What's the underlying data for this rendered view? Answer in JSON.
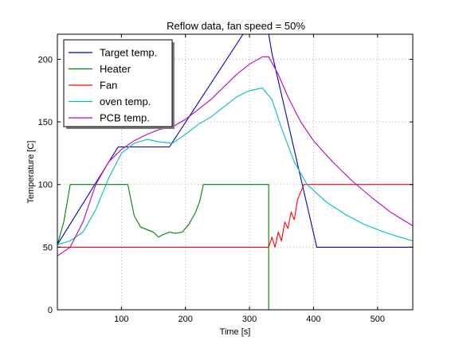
{
  "chart_data": {
    "type": "line",
    "title": "Reflow data, fan speed = 50%",
    "xlabel": "Time [s]",
    "ylabel": "Temperature [C]",
    "xlim": [
      0,
      555
    ],
    "ylim": [
      0,
      220
    ],
    "xticks": [
      100,
      200,
      300,
      400,
      500
    ],
    "yticks": [
      0,
      50,
      100,
      150,
      200
    ],
    "grid": true,
    "legend_position": "top-left",
    "series": [
      {
        "name": "Target temp.",
        "color": "#0000bf",
        "points": [
          [
            0,
            52
          ],
          [
            95,
            130
          ],
          [
            175,
            130
          ],
          [
            290,
            220
          ],
          [
            330,
            220
          ],
          [
            335,
            205
          ],
          [
            405,
            50
          ],
          [
            555,
            50
          ]
        ]
      },
      {
        "name": "Heater",
        "color": "#008000",
        "points": [
          [
            0,
            52
          ],
          [
            10,
            70
          ],
          [
            20,
            100
          ],
          [
            110,
            100
          ],
          [
            120,
            75
          ],
          [
            130,
            66
          ],
          [
            140,
            64
          ],
          [
            150,
            62
          ],
          [
            158,
            58
          ],
          [
            165,
            60
          ],
          [
            175,
            62
          ],
          [
            185,
            61
          ],
          [
            195,
            62
          ],
          [
            205,
            68
          ],
          [
            215,
            77
          ],
          [
            222,
            86
          ],
          [
            228,
            100
          ],
          [
            330,
            100
          ],
          [
            330,
            0
          ]
        ]
      },
      {
        "name": "Fan",
        "color": "#ff0000",
        "points": [
          [
            0,
            50
          ],
          [
            330,
            50
          ],
          [
            335,
            58
          ],
          [
            340,
            50
          ],
          [
            345,
            62
          ],
          [
            350,
            55
          ],
          [
            355,
            70
          ],
          [
            360,
            65
          ],
          [
            365,
            78
          ],
          [
            370,
            72
          ],
          [
            375,
            88
          ],
          [
            380,
            94
          ],
          [
            385,
            100
          ],
          [
            555,
            100
          ]
        ]
      },
      {
        "name": "oven temp.",
        "color": "#00bfbf",
        "points": [
          [
            0,
            52
          ],
          [
            20,
            55
          ],
          [
            40,
            62
          ],
          [
            60,
            80
          ],
          [
            80,
            105
          ],
          [
            100,
            125
          ],
          [
            120,
            133
          ],
          [
            140,
            136
          ],
          [
            160,
            134
          ],
          [
            180,
            133
          ],
          [
            200,
            140
          ],
          [
            220,
            148
          ],
          [
            240,
            154
          ],
          [
            260,
            162
          ],
          [
            280,
            170
          ],
          [
            300,
            175
          ],
          [
            320,
            177
          ],
          [
            335,
            168
          ],
          [
            350,
            145
          ],
          [
            370,
            118
          ],
          [
            390,
            100
          ],
          [
            420,
            86
          ],
          [
            450,
            76
          ],
          [
            480,
            68
          ],
          [
            510,
            62
          ],
          [
            535,
            58
          ],
          [
            555,
            55
          ]
        ]
      },
      {
        "name": "PCB temp.",
        "color": "#bf00bf",
        "points": [
          [
            0,
            43
          ],
          [
            20,
            50
          ],
          [
            40,
            70
          ],
          [
            60,
            100
          ],
          [
            80,
            118
          ],
          [
            100,
            128
          ],
          [
            120,
            135
          ],
          [
            140,
            140
          ],
          [
            160,
            144
          ],
          [
            180,
            146
          ],
          [
            200,
            152
          ],
          [
            220,
            160
          ],
          [
            240,
            168
          ],
          [
            260,
            178
          ],
          [
            280,
            188
          ],
          [
            300,
            196
          ],
          [
            320,
            202
          ],
          [
            330,
            202
          ],
          [
            345,
            188
          ],
          [
            360,
            170
          ],
          [
            380,
            150
          ],
          [
            400,
            135
          ],
          [
            430,
            118
          ],
          [
            460,
            103
          ],
          [
            490,
            90
          ],
          [
            520,
            78
          ],
          [
            555,
            67
          ]
        ]
      }
    ]
  }
}
